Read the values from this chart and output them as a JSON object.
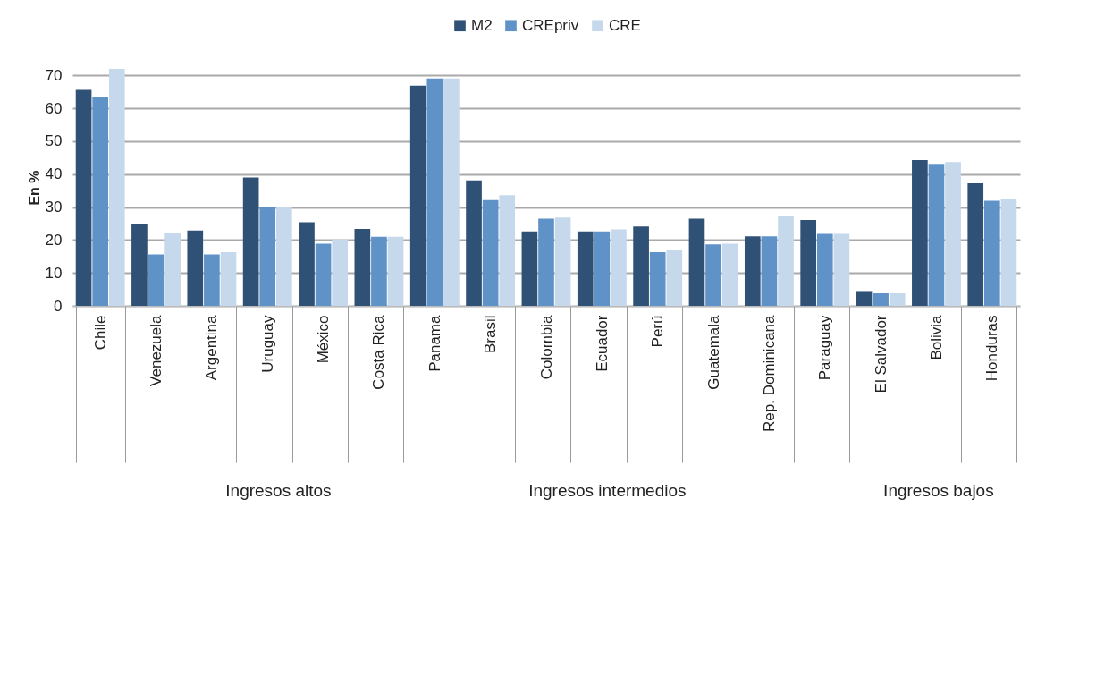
{
  "chart_data": {
    "type": "bar",
    "ylabel": "En %",
    "categories": [
      "Chile",
      "Venezuela",
      "Argentina",
      "Uruguay",
      "México",
      "Costa Rica",
      "Panama",
      "Brasil",
      "Colombia",
      "Ecuador",
      "Perú",
      "Guatemala",
      "Rep. Dominicana",
      "Paraguay",
      "El Salvador",
      "Bolivia",
      "Honduras"
    ],
    "series": [
      {
        "name": "M2",
        "color": "#2f5175",
        "values": [
          65.6,
          25.0,
          22.9,
          39.0,
          25.4,
          23.4,
          66.9,
          38.1,
          22.6,
          22.6,
          24.1,
          26.5,
          21.1,
          26.1,
          4.5,
          44.3,
          37.2
        ]
      },
      {
        "name": "CREpriv",
        "color": "#5f93c8",
        "values": [
          63.3,
          15.6,
          15.6,
          29.9,
          18.9,
          21.0,
          69.1,
          32.1,
          26.5,
          22.6,
          16.3,
          18.7,
          21.1,
          21.9,
          3.8,
          43.1,
          31.9
        ]
      },
      {
        "name": "CRE",
        "color": "#c5d8ec",
        "values": [
          72.0,
          22.0,
          16.3,
          29.9,
          20.1,
          21.0,
          69.1,
          33.6,
          26.8,
          23.2,
          17.1,
          18.9,
          27.4,
          21.9,
          3.8,
          43.7,
          32.6
        ]
      }
    ],
    "ylim": [
      0,
      72
    ],
    "yticks": [
      0,
      10,
      20,
      30,
      40,
      50,
      60,
      70
    ],
    "grid": "y",
    "legend": "top",
    "annotations": [
      "Ingresos altos",
      "Ingresos intermedios",
      "Ingresos bajos"
    ]
  }
}
